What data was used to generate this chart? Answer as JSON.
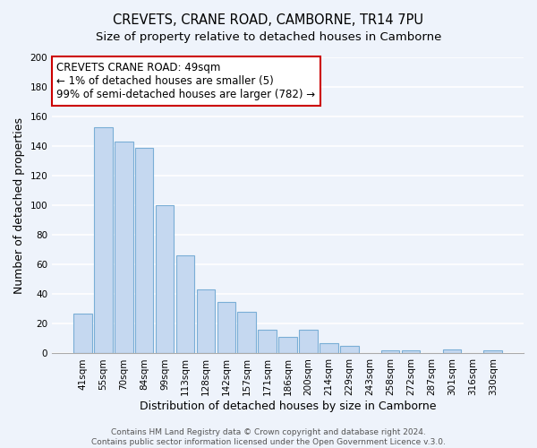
{
  "title": "CREVETS, CRANE ROAD, CAMBORNE, TR14 7PU",
  "subtitle": "Size of property relative to detached houses in Camborne",
  "xlabel": "Distribution of detached houses by size in Camborne",
  "ylabel": "Number of detached properties",
  "bar_labels": [
    "41sqm",
    "55sqm",
    "70sqm",
    "84sqm",
    "99sqm",
    "113sqm",
    "128sqm",
    "142sqm",
    "157sqm",
    "171sqm",
    "186sqm",
    "200sqm",
    "214sqm",
    "229sqm",
    "243sqm",
    "258sqm",
    "272sqm",
    "287sqm",
    "301sqm",
    "316sqm",
    "330sqm"
  ],
  "bar_values": [
    27,
    153,
    143,
    139,
    100,
    66,
    43,
    35,
    28,
    16,
    11,
    16,
    7,
    5,
    0,
    2,
    2,
    0,
    3,
    0,
    2
  ],
  "bar_color": "#c5d8f0",
  "bar_edge_color": "#7aaed6",
  "annotation_line1": "CREVETS CRANE ROAD: 49sqm",
  "annotation_line2": "← 1% of detached houses are smaller (5)",
  "annotation_line3": "99% of semi-detached houses are larger (782) →",
  "annotation_box_edge_color": "#cc0000",
  "annotation_box_face_color": "#ffffff",
  "ylim": [
    0,
    200
  ],
  "yticks": [
    0,
    20,
    40,
    60,
    80,
    100,
    120,
    140,
    160,
    180,
    200
  ],
  "footer_line1": "Contains HM Land Registry data © Crown copyright and database right 2024.",
  "footer_line2": "Contains public sector information licensed under the Open Government Licence v.3.0.",
  "background_color": "#eef3fb",
  "grid_color": "#ffffff",
  "title_fontsize": 10.5,
  "subtitle_fontsize": 9.5,
  "axis_label_fontsize": 9,
  "tick_fontsize": 7.5,
  "annotation_fontsize": 8.5,
  "footer_fontsize": 6.5
}
